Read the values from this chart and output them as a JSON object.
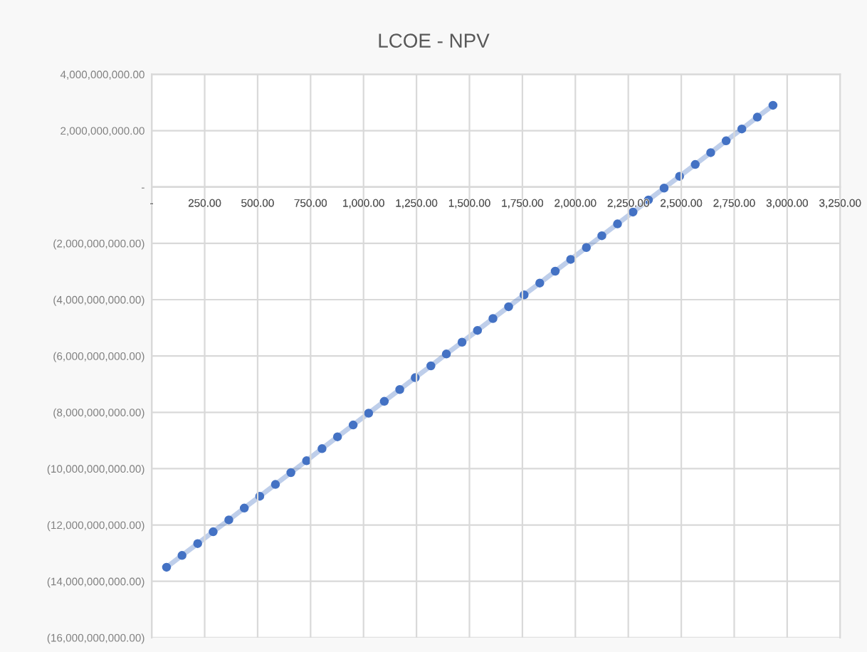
{
  "chart_data": {
    "type": "line",
    "title": "LCOE - NPV",
    "x": [
      70,
      143,
      217,
      290,
      364,
      437,
      510,
      584,
      657,
      731,
      804,
      877,
      951,
      1024,
      1098,
      1171,
      1244,
      1318,
      1391,
      1465,
      1538,
      1611,
      1685,
      1758,
      1832,
      1905,
      1978,
      2052,
      2125,
      2199,
      2272,
      2345,
      2419,
      2492,
      2566,
      2639,
      2712,
      2786,
      2859,
      2933
    ],
    "series": [
      {
        "color": "#4472c4",
        "values": [
          -13500000000,
          -13080000000,
          -12660000000,
          -12240000000,
          -11820000000,
          -11400000000,
          -10980000000,
          -10560000000,
          -10140000000,
          -9720000000,
          -9290000000,
          -8870000000,
          -8450000000,
          -8030000000,
          -7610000000,
          -7190000000,
          -6770000000,
          -6350000000,
          -5930000000,
          -5510000000,
          -5090000000,
          -4670000000,
          -4250000000,
          -3830000000,
          -3410000000,
          -2990000000,
          -2570000000,
          -2150000000,
          -1730000000,
          -1310000000,
          -890000000,
          -460000000,
          -40000000,
          380000000,
          800000000,
          1220000000,
          1640000000,
          2060000000,
          2480000000,
          2900000000
        ]
      }
    ],
    "marker": "circle",
    "grid": true,
    "xlim": [
      0,
      3250
    ],
    "xticks": [
      {
        "value": 0,
        "label": "-"
      },
      {
        "value": 250,
        "label": "250.00"
      },
      {
        "value": 500,
        "label": "500.00"
      },
      {
        "value": 750,
        "label": "750.00"
      },
      {
        "value": 1000,
        "label": "1,000.00"
      },
      {
        "value": 1250,
        "label": "1,250.00"
      },
      {
        "value": 1500,
        "label": "1,500.00"
      },
      {
        "value": 1750,
        "label": "1,750.00"
      },
      {
        "value": 2000,
        "label": "2,000.00"
      },
      {
        "value": 2250,
        "label": "2,250.00"
      },
      {
        "value": 2500,
        "label": "2,500.00"
      },
      {
        "value": 2750,
        "label": "2,750.00"
      },
      {
        "value": 3000,
        "label": "3,000.00"
      },
      {
        "value": 3250,
        "label": "3,250.00"
      }
    ],
    "ylim": [
      -16000000000,
      4000000000
    ],
    "yticks": [
      {
        "value": 4000000000,
        "label": "4,000,000,000.00"
      },
      {
        "value": 2000000000,
        "label": "2,000,000,000.00"
      },
      {
        "value": 0,
        "label": "-"
      },
      {
        "value": -2000000000,
        "label": "(2,000,000,000.00)"
      },
      {
        "value": -4000000000,
        "label": "(4,000,000,000.00)"
      },
      {
        "value": -6000000000,
        "label": "(6,000,000,000.00)"
      },
      {
        "value": -8000000000,
        "label": "(8,000,000,000.00)"
      },
      {
        "value": -10000000000,
        "label": "(10,000,000,000.00)"
      },
      {
        "value": -12000000000,
        "label": "(12,000,000,000.00)"
      },
      {
        "value": -14000000000,
        "label": "(14,000,000,000.00)"
      },
      {
        "value": -16000000000,
        "label": "(16,000,000,000.00)"
      }
    ]
  }
}
